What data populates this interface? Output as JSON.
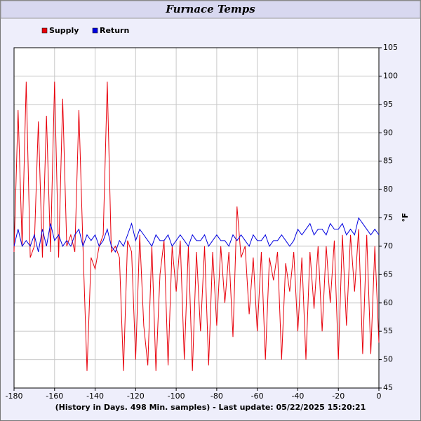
{
  "chart_data": {
    "type": "line",
    "title": "Furnace Temps",
    "caption": "(History in Days. 498 Min. samples) - Last update: 05/22/2025 15:20:21",
    "y_label": "°F",
    "y_axis_side": "right",
    "grid": true,
    "legend": "top-left",
    "x": [
      -180,
      -178,
      -176,
      -174,
      -172,
      -170,
      -168,
      -166,
      -164,
      -162,
      -160,
      -158,
      -156,
      -154,
      -152,
      -150,
      -148,
      -146,
      -144,
      -142,
      -140,
      -138,
      -136,
      -134,
      -132,
      -130,
      -128,
      -126,
      -124,
      -122,
      -120,
      -118,
      -116,
      -114,
      -112,
      -110,
      -108,
      -106,
      -104,
      -102,
      -100,
      -98,
      -96,
      -94,
      -92,
      -90,
      -88,
      -86,
      -84,
      -82,
      -80,
      -78,
      -76,
      -74,
      -72,
      -70,
      -68,
      -66,
      -64,
      -62,
      -60,
      -58,
      -56,
      -54,
      -52,
      -50,
      -48,
      -46,
      -44,
      -42,
      -40,
      -38,
      -36,
      -34,
      -32,
      -30,
      -28,
      -26,
      -24,
      -22,
      -20,
      -18,
      -16,
      -14,
      -12,
      -10,
      -8,
      -6,
      -4,
      -2,
      0
    ],
    "series": [
      {
        "name": "Supply",
        "color": "#e8000b",
        "values": [
          69,
          94,
          70,
          99,
          68,
          70,
          92,
          68,
          93,
          69,
          99,
          68,
          96,
          70,
          72,
          69,
          94,
          70,
          48,
          68,
          66,
          70,
          72,
          99,
          69,
          70,
          68,
          48,
          71,
          69,
          50,
          72,
          56,
          49,
          70,
          48,
          65,
          71,
          49,
          70,
          62,
          71,
          50,
          70,
          48,
          69,
          55,
          70,
          49,
          69,
          56,
          70,
          60,
          69,
          54,
          77,
          68,
          70,
          58,
          68,
          55,
          69,
          50,
          68,
          64,
          69,
          50,
          67,
          62,
          69,
          55,
          68,
          50,
          69,
          59,
          70,
          55,
          70,
          60,
          71,
          50,
          72,
          56,
          72,
          62,
          73,
          51,
          72,
          51,
          70,
          53
        ]
      },
      {
        "name": "Return",
        "color": "#0000e0",
        "values": [
          70,
          73,
          70,
          71,
          70,
          72,
          69,
          73,
          70,
          74,
          71,
          72,
          70,
          71,
          70,
          72,
          73,
          70,
          72,
          71,
          72,
          70,
          71,
          73,
          70,
          69,
          71,
          70,
          72,
          74,
          71,
          73,
          72,
          71,
          70,
          72,
          71,
          71,
          72,
          70,
          71,
          72,
          71,
          70,
          72,
          71,
          71,
          72,
          70,
          71,
          72,
          71,
          71,
          70,
          72,
          71,
          72,
          71,
          70,
          72,
          71,
          71,
          72,
          70,
          71,
          71,
          72,
          71,
          70,
          71,
          73,
          72,
          73,
          74,
          72,
          73,
          73,
          72,
          74,
          73,
          73,
          74,
          72,
          73,
          72,
          75,
          74,
          73,
          72,
          73,
          72
        ]
      }
    ],
    "xlim": [
      -180,
      0
    ],
    "xticks": [
      -180,
      -160,
      -140,
      -120,
      -100,
      -80,
      -60,
      -40,
      -20,
      0
    ],
    "ylim": [
      45,
      105
    ],
    "yticks": [
      45,
      50,
      55,
      60,
      65,
      70,
      75,
      80,
      85,
      90,
      95,
      100,
      105
    ]
  }
}
